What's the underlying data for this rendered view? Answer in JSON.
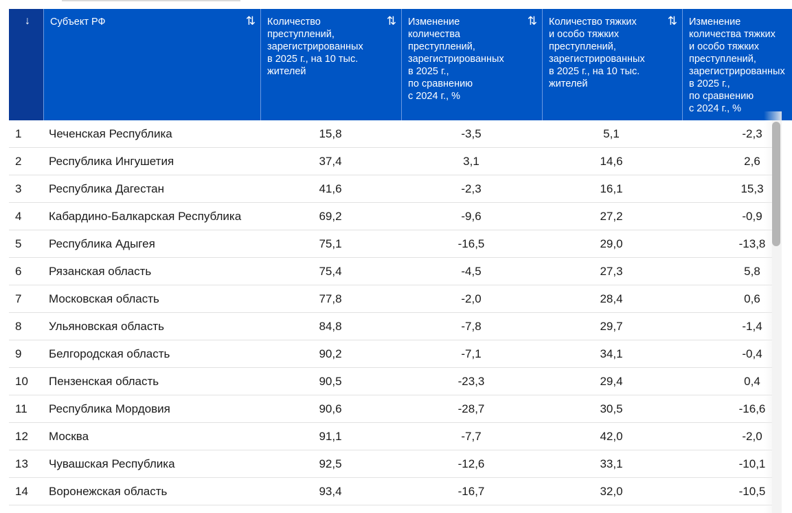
{
  "header": {
    "index_sort_icon": "↓",
    "sort_icon": "⇅",
    "columns": [
      "Субъект РФ",
      "Количество\nпреступлений,\nзарегистрированных\nв 2025 г., на 10 тыс.\nжителей",
      "Изменение\nколичества\nпреступлений,\nзарегистрированных\nв 2025 г.,\nпо сравнению\nс 2024 г., %",
      "Количество тяжких\nи особо тяжких\nпреступлений,\nзарегистрированных\nв 2025 г., на 10 тыс.\nжителей",
      "Изменение\nколичества тяжких\nи особо тяжких\nпреступлений,\nзарегистрированных\nв 2025 г.,\nпо сравнению\nс 2024 г., %"
    ]
  },
  "rows": [
    {
      "num": "1",
      "name": "Чеченская Республика",
      "v1": "15,8",
      "v2": "-3,5",
      "v3": "5,1",
      "v4": "-2,3"
    },
    {
      "num": "2",
      "name": "Республика Ингушетия",
      "v1": "37,4",
      "v2": "3,1",
      "v3": "14,6",
      "v4": "2,6"
    },
    {
      "num": "3",
      "name": "Республика Дагестан",
      "v1": "41,6",
      "v2": "-2,3",
      "v3": "16,1",
      "v4": "15,3"
    },
    {
      "num": "4",
      "name": "Кабардино-Балкарская Республика",
      "v1": "69,2",
      "v2": "-9,6",
      "v3": "27,2",
      "v4": "-0,9"
    },
    {
      "num": "5",
      "name": "Республика Адыгея",
      "v1": "75,1",
      "v2": "-16,5",
      "v3": "29,0",
      "v4": "-13,8"
    },
    {
      "num": "6",
      "name": "Рязанская область",
      "v1": "75,4",
      "v2": "-4,5",
      "v3": "27,3",
      "v4": "5,8"
    },
    {
      "num": "7",
      "name": "Московская область",
      "v1": "77,8",
      "v2": "-2,0",
      "v3": "28,4",
      "v4": "0,6"
    },
    {
      "num": "8",
      "name": "Ульяновская область",
      "v1": "84,8",
      "v2": "-7,8",
      "v3": "29,7",
      "v4": "-1,4"
    },
    {
      "num": "9",
      "name": "Белгородская область",
      "v1": "90,2",
      "v2": "-7,1",
      "v3": "34,1",
      "v4": "-0,4"
    },
    {
      "num": "10",
      "name": "Пензенская область",
      "v1": "90,5",
      "v2": "-23,3",
      "v3": "29,4",
      "v4": "0,4"
    },
    {
      "num": "11",
      "name": "Республика Мордовия",
      "v1": "90,6",
      "v2": "-28,7",
      "v3": "30,5",
      "v4": "-16,6"
    },
    {
      "num": "12",
      "name": "Москва",
      "v1": "91,1",
      "v2": "-7,7",
      "v3": "42,0",
      "v4": "-2,0"
    },
    {
      "num": "13",
      "name": "Чувашская Республика",
      "v1": "92,5",
      "v2": "-12,6",
      "v3": "33,1",
      "v4": "-10,1"
    },
    {
      "num": "14",
      "name": "Воронежская область",
      "v1": "93,4",
      "v2": "-16,7",
      "v3": "32,0",
      "v4": "-10,5"
    }
  ],
  "colors": {
    "header_bg": "#0055c4",
    "header_index_bg": "#0a3a96",
    "header_text": "#ffffff",
    "row_divider": "#e2e2e2"
  }
}
